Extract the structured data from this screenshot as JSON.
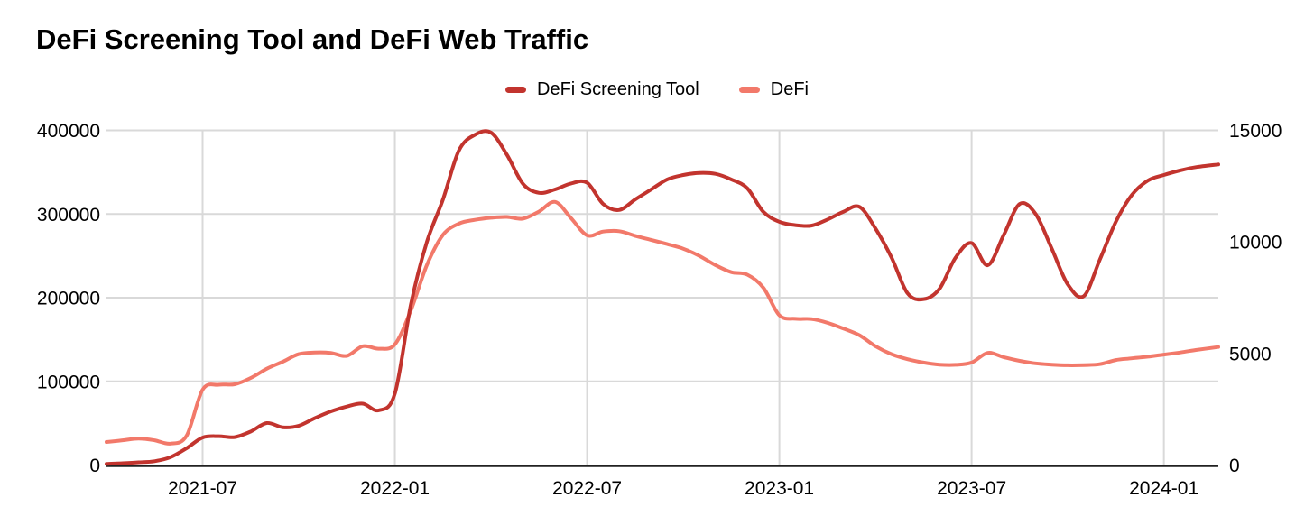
{
  "header": {
    "title": "DeFi Screening Tool and DeFi Web Traffic"
  },
  "chart_data": {
    "type": "line",
    "title": "DeFi Screening Tool and DeFi Web Traffic",
    "legend_position": "top-center",
    "grid": {
      "gridline_color": "#d9d9d9",
      "axis_line_color": "#212121",
      "background": "#ffffff"
    },
    "x_axis": {
      "tick_labels": [
        "2021-07",
        "2022-01",
        "2022-07",
        "2023-01",
        "2023-07",
        "2024-01"
      ],
      "tick_positions_months": [
        3,
        9,
        15,
        21,
        27,
        33
      ],
      "domain_months": [
        0,
        34.7
      ]
    },
    "y_axis_left": {
      "range": [
        0,
        400000
      ],
      "tick_labels": [
        "0",
        "100000",
        "200000",
        "300000",
        "400000"
      ],
      "tick_values": [
        0,
        100000,
        200000,
        300000,
        400000
      ],
      "applies_to_series": "DeFi"
    },
    "y_axis_right": {
      "range": [
        0,
        15000
      ],
      "tick_labels": [
        "0",
        "5000",
        "10000",
        "15000"
      ],
      "tick_values": [
        0,
        5000,
        10000,
        15000
      ],
      "applies_to_series": "DeFi Screening Tool"
    },
    "series": [
      {
        "name": "DeFi Screening Tool",
        "axis": "right",
        "color": "#c2342e",
        "stroke_width": 4,
        "points": [
          [
            0,
            50
          ],
          [
            0.5,
            80
          ],
          [
            1,
            120
          ],
          [
            1.5,
            170
          ],
          [
            2,
            350
          ],
          [
            2.5,
            750
          ],
          [
            3,
            1230
          ],
          [
            3.5,
            1290
          ],
          [
            4,
            1250
          ],
          [
            4.5,
            1500
          ],
          [
            5,
            1880
          ],
          [
            5.5,
            1690
          ],
          [
            6,
            1760
          ],
          [
            6.5,
            2100
          ],
          [
            7,
            2400
          ],
          [
            7.5,
            2620
          ],
          [
            8,
            2750
          ],
          [
            8.5,
            2450
          ],
          [
            9,
            3200
          ],
          [
            9.5,
            7200
          ],
          [
            10,
            10000
          ],
          [
            10.5,
            11900
          ],
          [
            11,
            14100
          ],
          [
            11.5,
            14800
          ],
          [
            12,
            14900
          ],
          [
            12.5,
            13900
          ],
          [
            13,
            12600
          ],
          [
            13.5,
            12200
          ],
          [
            14,
            12350
          ],
          [
            14.5,
            12620
          ],
          [
            15,
            12650
          ],
          [
            15.5,
            11700
          ],
          [
            16,
            11430
          ],
          [
            16.5,
            11900
          ],
          [
            17,
            12350
          ],
          [
            17.5,
            12800
          ],
          [
            18,
            13000
          ],
          [
            18.5,
            13090
          ],
          [
            19,
            13050
          ],
          [
            19.5,
            12800
          ],
          [
            20,
            12400
          ],
          [
            20.5,
            11350
          ],
          [
            21,
            10900
          ],
          [
            21.5,
            10750
          ],
          [
            22,
            10730
          ],
          [
            22.5,
            11000
          ],
          [
            23,
            11350
          ],
          [
            23.5,
            11570
          ],
          [
            24,
            10600
          ],
          [
            24.5,
            9300
          ],
          [
            25,
            7700
          ],
          [
            25.5,
            7430
          ],
          [
            26,
            7900
          ],
          [
            26.5,
            9300
          ],
          [
            27,
            9950
          ],
          [
            27.5,
            8950
          ],
          [
            28,
            10300
          ],
          [
            28.5,
            11700
          ],
          [
            29,
            11250
          ],
          [
            29.5,
            9700
          ],
          [
            30,
            8100
          ],
          [
            30.5,
            7570
          ],
          [
            31,
            9200
          ],
          [
            31.5,
            10900
          ],
          [
            32,
            12100
          ],
          [
            32.5,
            12750
          ],
          [
            33,
            13000
          ],
          [
            33.5,
            13200
          ],
          [
            34,
            13350
          ],
          [
            34.7,
            13470
          ]
        ]
      },
      {
        "name": "DeFi",
        "axis": "left",
        "color": "#f2796a",
        "stroke_width": 4,
        "points": [
          [
            0,
            27500
          ],
          [
            0.5,
            29500
          ],
          [
            1,
            31500
          ],
          [
            1.5,
            29500
          ],
          [
            2,
            25500
          ],
          [
            2.5,
            35000
          ],
          [
            3,
            90000
          ],
          [
            3.5,
            96000
          ],
          [
            4,
            96500
          ],
          [
            4.5,
            104000
          ],
          [
            5,
            115000
          ],
          [
            5.5,
            123500
          ],
          [
            6,
            132500
          ],
          [
            6.5,
            134500
          ],
          [
            7,
            134000
          ],
          [
            7.5,
            130500
          ],
          [
            8,
            142000
          ],
          [
            8.5,
            139000
          ],
          [
            9,
            144200
          ],
          [
            9.5,
            185000
          ],
          [
            10,
            239000
          ],
          [
            10.5,
            275000
          ],
          [
            11,
            288500
          ],
          [
            11.5,
            293000
          ],
          [
            12,
            295500
          ],
          [
            12.5,
            296500
          ],
          [
            13,
            294500
          ],
          [
            13.5,
            303000
          ],
          [
            14,
            314500
          ],
          [
            14.5,
            295000
          ],
          [
            15,
            274500
          ],
          [
            15.5,
            279000
          ],
          [
            16,
            279500
          ],
          [
            16.5,
            274000
          ],
          [
            17,
            269000
          ],
          [
            17.5,
            264000
          ],
          [
            18,
            258500
          ],
          [
            18.5,
            250000
          ],
          [
            19,
            239000
          ],
          [
            19.5,
            230500
          ],
          [
            20,
            227500
          ],
          [
            20.5,
            212000
          ],
          [
            21,
            179000
          ],
          [
            21.5,
            174800
          ],
          [
            22,
            174500
          ],
          [
            22.5,
            170000
          ],
          [
            23,
            163000
          ],
          [
            23.5,
            155000
          ],
          [
            24,
            142000
          ],
          [
            24.5,
            132500
          ],
          [
            25,
            126500
          ],
          [
            25.5,
            122500
          ],
          [
            26,
            120000
          ],
          [
            26.5,
            119800
          ],
          [
            27,
            122500
          ],
          [
            27.5,
            134000
          ],
          [
            28,
            129000
          ],
          [
            28.5,
            124500
          ],
          [
            29,
            121500
          ],
          [
            29.5,
            120000
          ],
          [
            30,
            119200
          ],
          [
            30.5,
            119500
          ],
          [
            31,
            120500
          ],
          [
            31.5,
            125500
          ],
          [
            32,
            127500
          ],
          [
            32.5,
            129500
          ],
          [
            33,
            132000
          ],
          [
            33.5,
            134500
          ],
          [
            34,
            137500
          ],
          [
            34.7,
            141000
          ]
        ]
      }
    ]
  }
}
